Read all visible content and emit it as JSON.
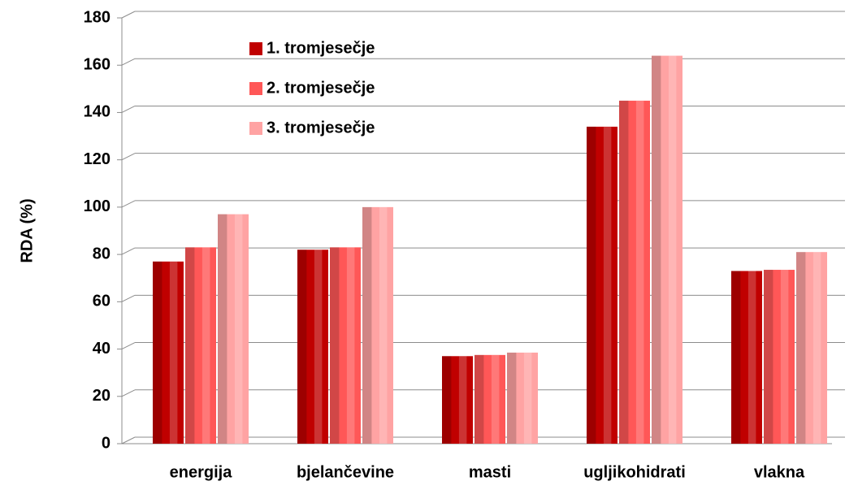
{
  "chart_data": {
    "type": "bar",
    "y_label": "RDA (%)",
    "categories": [
      "energija",
      "bjelančevine",
      "masti",
      "ugljikohidrati",
      "vlakna"
    ],
    "series": [
      {
        "name": "1. tromjesečje",
        "color": "#c00000",
        "values": [
          77,
          82,
          37,
          134,
          73
        ]
      },
      {
        "name": "2. tromjesečje",
        "color": "#ff5757",
        "values": [
          83,
          83,
          37.5,
          145,
          73.5
        ]
      },
      {
        "name": "3. tromjesečje",
        "color": "#ffa3a3",
        "values": [
          97,
          100,
          38.5,
          164,
          81
        ]
      }
    ],
    "ylim": [
      0,
      180
    ],
    "yticks": [
      0,
      20,
      40,
      60,
      80,
      100,
      120,
      140,
      160,
      180
    ],
    "grid": true
  }
}
